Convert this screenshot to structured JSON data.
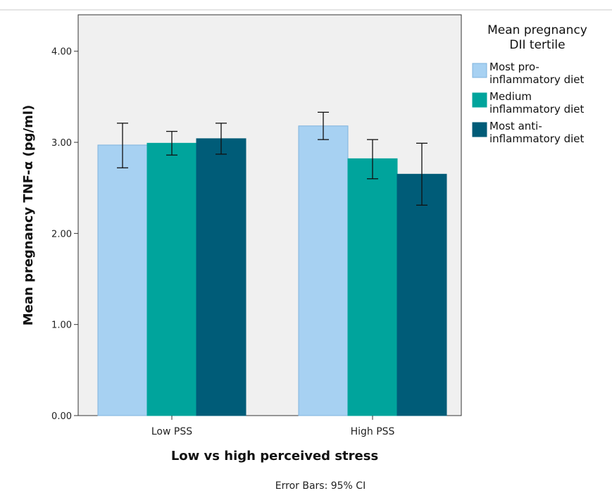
{
  "chart_data": {
    "type": "bar",
    "title": "",
    "xlabel": "Low vs high perceived stress",
    "ylabel": "Mean pregnancy TNF-α (pg/ml)",
    "ylim": [
      0,
      4.4
    ],
    "yticks": [
      "0.00",
      "1.00",
      "2.00",
      "3.00",
      "4.00"
    ],
    "ytick_values": [
      0,
      1,
      2,
      3,
      4
    ],
    "grid": false,
    "categories": [
      "Low PSS",
      "High PSS"
    ],
    "legend": {
      "title_lines": [
        "Mean pregnancy",
        "DII tertile"
      ],
      "placement": "right"
    },
    "series": [
      {
        "name": "Most pro-inflammatory diet",
        "label_lines": [
          "Most pro-",
          "inflammatory diet"
        ],
        "color": "#a7d1f2",
        "values": [
          2.97,
          3.18
        ],
        "ci_low": [
          2.72,
          3.03
        ],
        "ci_high": [
          3.21,
          3.33
        ]
      },
      {
        "name": "Medium inflammatory diet",
        "label_lines": [
          "Medium",
          "inflammatory diet"
        ],
        "color": "#00a49c",
        "values": [
          2.99,
          2.82
        ],
        "ci_low": [
          2.86,
          2.6
        ],
        "ci_high": [
          3.12,
          3.03
        ]
      },
      {
        "name": "Most anti-inflammatory diet",
        "label_lines": [
          "Most anti-",
          "inflammatory diet"
        ],
        "color": "#005c78",
        "values": [
          3.04,
          2.65
        ],
        "ci_low": [
          2.87,
          2.31
        ],
        "ci_high": [
          3.21,
          2.99
        ]
      }
    ],
    "footnote": "Error Bars: 95% CI"
  }
}
